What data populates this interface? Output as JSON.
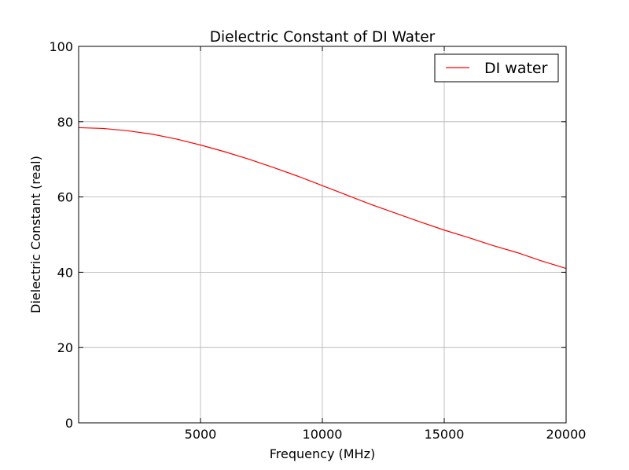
{
  "chart_data": {
    "type": "line",
    "title": "Dielectric Constant of DI Water",
    "xlabel": "Frequency (MHz)",
    "ylabel": "Dielectric Constant (real)",
    "xlim": [
      0,
      20000
    ],
    "ylim": [
      0,
      100
    ],
    "xticks": [
      5000,
      10000,
      15000,
      20000
    ],
    "xtick_labels": [
      "5000",
      "10000",
      "15000",
      "20000"
    ],
    "yticks": [
      0,
      20,
      40,
      60,
      80,
      100
    ],
    "ytick_labels": [
      "0",
      "20",
      "40",
      "60",
      "80",
      "100"
    ],
    "grid": true,
    "legend_position": "top-right",
    "series": [
      {
        "name": "DI water",
        "color": "#ff0000",
        "x": [
          0,
          1000,
          2000,
          3000,
          4000,
          5000,
          6000,
          7000,
          8000,
          9000,
          10000,
          11000,
          12000,
          13000,
          14000,
          15000,
          16000,
          17000,
          18000,
          19000,
          20000
        ],
        "y": [
          78.4,
          78.2,
          77.6,
          76.7,
          75.4,
          73.8,
          72.0,
          70.0,
          67.8,
          65.5,
          63.0,
          60.5,
          58.0,
          55.7,
          53.4,
          51.2,
          49.2,
          47.1,
          45.2,
          43.0,
          41.0
        ]
      }
    ]
  }
}
